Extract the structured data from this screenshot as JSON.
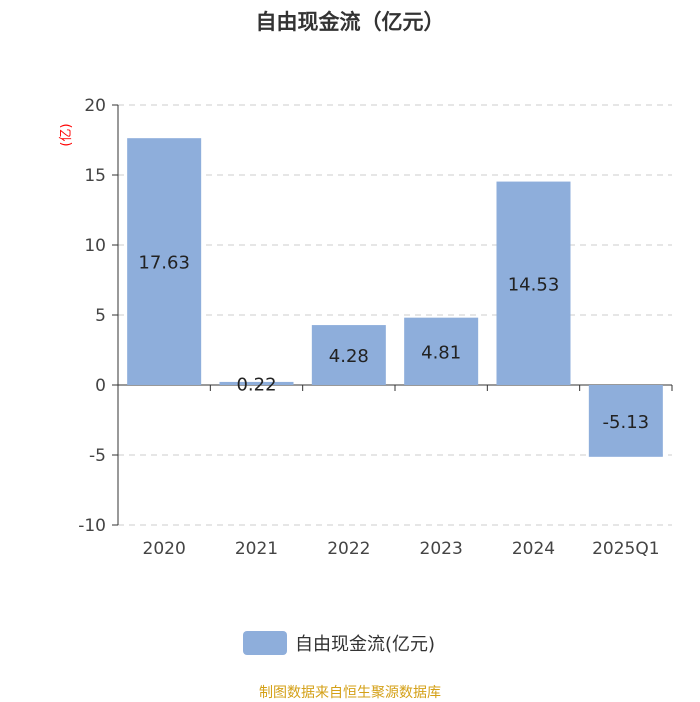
{
  "title": "自由现金流（亿元）",
  "legend": {
    "label": "自由现金流(亿元)"
  },
  "source": "制图数据来自恒生聚源数据库",
  "colors": {
    "bar": "#8eaedb",
    "axis_unit": "#ff0000",
    "source": "#d4a017"
  },
  "chart_data": {
    "type": "bar",
    "title": "自由现金流（亿元）",
    "ylabel": "(亿)",
    "categories": [
      "2020",
      "2021",
      "2022",
      "2023",
      "2024",
      "2025Q1"
    ],
    "series": [
      {
        "name": "自由现金流(亿元)",
        "values": [
          17.63,
          0.22,
          4.28,
          4.81,
          14.53,
          -5.13
        ]
      }
    ],
    "value_labels": [
      "17.63",
      "0.22",
      "4.28",
      "4.81",
      "14.53",
      "-5.13"
    ],
    "ylim": [
      -10,
      20
    ],
    "yticks": [
      "20",
      "15",
      "10",
      "5",
      "0",
      "-5",
      "-10"
    ],
    "grid": true,
    "legend_position": "bottom"
  }
}
